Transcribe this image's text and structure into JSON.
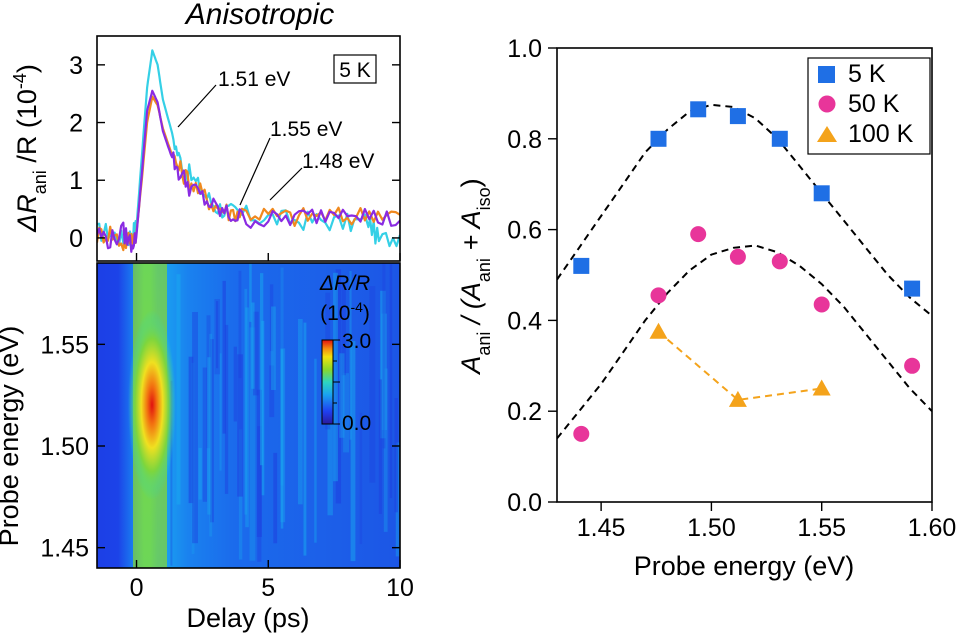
{
  "chart_data": [
    {
      "type": "line",
      "title": "Anisotropic",
      "xlabel": "Delay (ps)",
      "ylabel_parts": [
        "ΔR",
        "ani",
        " /R (10",
        "-4",
        ")"
      ],
      "annotation": "5 K",
      "xlim": [
        -1.5,
        10
      ],
      "ylim": [
        -0.4,
        3.5
      ],
      "x_ticks": [
        "0",
        "5",
        "10"
      ],
      "y_ticks": [
        "0",
        "1",
        "2",
        "3"
      ],
      "series": [
        {
          "name": "1.51 eV",
          "color": "#35d0e6",
          "x": [
            -1.5,
            -1.0,
            -0.5,
            -0.2,
            0.0,
            0.2,
            0.4,
            0.6,
            0.8,
            1.0,
            1.3,
            1.6,
            2.0,
            2.5,
            3.0,
            3.5,
            4.0,
            5.0,
            6.0,
            7.0,
            8.0,
            8.8,
            9.2,
            10.0
          ],
          "y": [
            0.1,
            0.1,
            -0.05,
            0.05,
            0.2,
            1.4,
            2.6,
            3.25,
            3.0,
            2.4,
            1.9,
            1.4,
            1.1,
            0.8,
            0.55,
            0.45,
            0.4,
            0.35,
            0.3,
            0.3,
            0.25,
            0.3,
            -0.05,
            0.05
          ]
        },
        {
          "name": "1.55 eV",
          "color": "#f0891e",
          "x": [
            -1.5,
            -1.0,
            -0.5,
            -0.2,
            0.0,
            0.2,
            0.4,
            0.6,
            0.8,
            1.0,
            1.3,
            1.6,
            2.0,
            2.5,
            3.0,
            3.5,
            4.0,
            5.0,
            6.0,
            7.0,
            8.0,
            9.0,
            10.0
          ],
          "y": [
            0.05,
            0.1,
            -0.1,
            0.0,
            0.1,
            1.0,
            2.0,
            2.45,
            2.3,
            1.9,
            1.5,
            1.2,
            1.0,
            0.75,
            0.55,
            0.45,
            0.45,
            0.4,
            0.35,
            0.4,
            0.35,
            0.45,
            0.4
          ]
        },
        {
          "name": "1.48 eV",
          "color": "#8a2be2",
          "x": [
            -1.5,
            -1.0,
            -0.5,
            -0.2,
            0.0,
            0.2,
            0.4,
            0.6,
            0.8,
            1.0,
            1.3,
            1.6,
            2.0,
            2.5,
            3.0,
            3.5,
            4.0,
            5.0,
            6.0,
            7.0,
            8.0,
            9.0,
            10.0
          ],
          "y": [
            0.1,
            -0.05,
            0.1,
            -0.1,
            0.05,
            1.1,
            2.2,
            2.55,
            2.35,
            1.85,
            1.45,
            1.15,
            0.9,
            0.7,
            0.5,
            0.4,
            0.35,
            0.3,
            0.35,
            0.4,
            0.55,
            0.35,
            0.3
          ]
        }
      ]
    },
    {
      "type": "heatmap",
      "xlabel": "Delay (ps)",
      "ylabel": "Probe energy (eV)",
      "xlim": [
        -1.5,
        10
      ],
      "ylim": [
        1.44,
        1.59
      ],
      "x_ticks": [
        "0",
        "5",
        "10"
      ],
      "y_ticks": [
        "1.45",
        "1.50",
        "1.55"
      ],
      "colorbar": {
        "label": "ΔR/R",
        "unit": "(10",
        "unit_exp": "-4",
        "unit_close": ")",
        "min": 0.0,
        "max": 3.0,
        "min_label": "0.0",
        "max_label": "3.0",
        "colormap": "rainbow"
      },
      "peak": {
        "delay_ps": 0.6,
        "energy_ev": 1.515,
        "value": 3.0
      }
    },
    {
      "type": "scatter",
      "xlabel": "Probe energy (eV)",
      "ylabel_parts": [
        "A",
        "ani",
        " / (A",
        "ani",
        " + A",
        "iso",
        ")"
      ],
      "xlim": [
        1.43,
        1.6
      ],
      "ylim": [
        0.0,
        1.0
      ],
      "x_ticks": [
        "1.45",
        "1.50",
        "1.55",
        "1.60"
      ],
      "y_ticks": [
        "0.0",
        "0.2",
        "0.4",
        "0.6",
        "0.8",
        "1.0"
      ],
      "legend_position": "top-right",
      "series": [
        {
          "name": "5 K",
          "color": "#1f6fe5",
          "marker": "square",
          "x": [
            1.441,
            1.476,
            1.494,
            1.512,
            1.531,
            1.55,
            1.591
          ],
          "y": [
            0.52,
            0.8,
            0.865,
            0.85,
            0.8,
            0.68,
            0.47
          ]
        },
        {
          "name": "50 K",
          "color": "#e8359a",
          "marker": "circle",
          "x": [
            1.441,
            1.476,
            1.494,
            1.512,
            1.531,
            1.55,
            1.591
          ],
          "y": [
            0.15,
            0.455,
            0.59,
            0.54,
            0.53,
            0.435,
            0.3
          ]
        },
        {
          "name": "100 K",
          "color": "#f4a31b",
          "marker": "triangle",
          "connected": true,
          "x": [
            1.476,
            1.512,
            1.55
          ],
          "y": [
            0.375,
            0.225,
            0.25
          ]
        }
      ],
      "fits": [
        {
          "x": [
            1.43,
            1.44,
            1.45,
            1.46,
            1.47,
            1.48,
            1.49,
            1.5,
            1.51,
            1.52,
            1.53,
            1.54,
            1.55,
            1.56,
            1.57,
            1.58,
            1.59,
            1.6
          ],
          "y": [
            0.49,
            0.56,
            0.63,
            0.7,
            0.77,
            0.82,
            0.86,
            0.875,
            0.87,
            0.845,
            0.8,
            0.74,
            0.68,
            0.62,
            0.56,
            0.5,
            0.45,
            0.41
          ]
        },
        {
          "x": [
            1.43,
            1.44,
            1.45,
            1.46,
            1.47,
            1.48,
            1.49,
            1.5,
            1.51,
            1.52,
            1.53,
            1.54,
            1.55,
            1.56,
            1.57,
            1.58,
            1.59,
            1.6
          ],
          "y": [
            0.14,
            0.2,
            0.26,
            0.33,
            0.4,
            0.46,
            0.51,
            0.545,
            0.56,
            0.565,
            0.55,
            0.52,
            0.48,
            0.43,
            0.37,
            0.31,
            0.25,
            0.2
          ]
        }
      ]
    }
  ]
}
